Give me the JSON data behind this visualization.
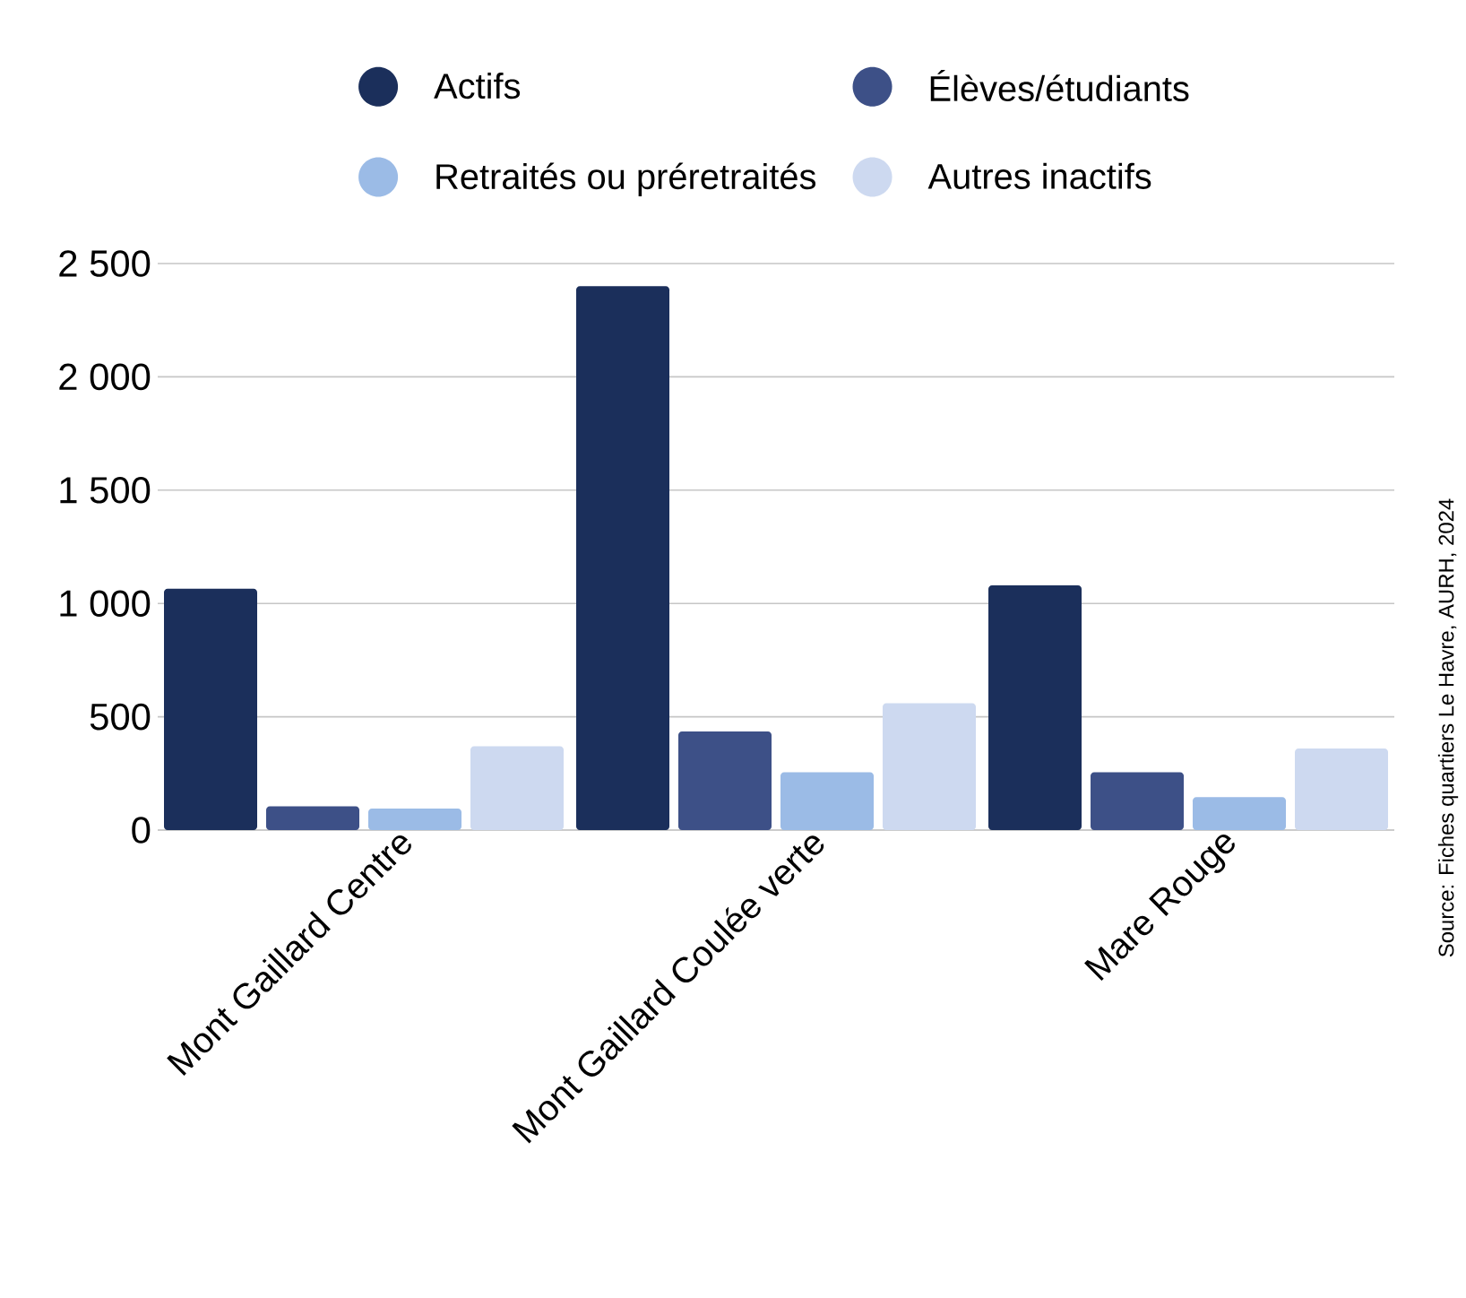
{
  "chart_data": {
    "type": "bar",
    "categories": [
      "Mont Gaillard Centre",
      "Mont Gaillard Coulée verte",
      "Mare Rouge"
    ],
    "series": [
      {
        "name": "Actifs",
        "color": "#1b2f5b",
        "values": [
          1065,
          2400,
          1080
        ]
      },
      {
        "name": "Élèves/étudiants",
        "color": "#3d5087",
        "values": [
          105,
          435,
          255
        ]
      },
      {
        "name": "Retraités ou préretraités",
        "color": "#9bbbe6",
        "values": [
          95,
          255,
          145
        ]
      },
      {
        "name": "Autres inactifs",
        "color": "#cdd9f0",
        "values": [
          370,
          560,
          360
        ]
      }
    ],
    "ylim": [
      0,
      2500
    ],
    "yticks": [
      0,
      500,
      {
        "value": 1000,
        "label": "1 000"
      },
      {
        "value": 1500,
        "label": "1 500"
      },
      {
        "value": 2000,
        "label": "2 000"
      },
      {
        "value": 2500,
        "label": "2 500"
      }
    ],
    "grid": "y",
    "legend": "top",
    "annotations": [
      "Source: Fiches quartiers Le Havre, AURH, 2024"
    ]
  }
}
